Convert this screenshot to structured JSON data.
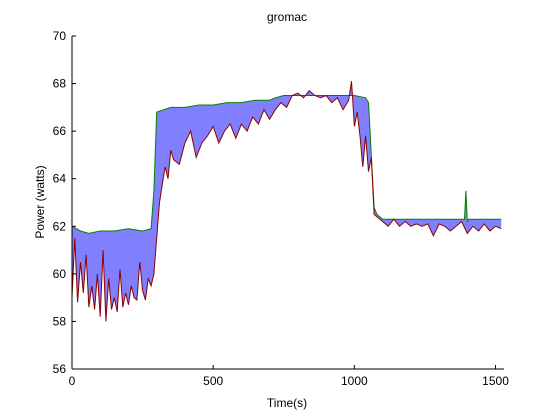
{
  "chart_data": {
    "type": "area",
    "title": "gromac",
    "xlabel": "Time(s)",
    "ylabel": "Power (watts)",
    "xlim": [
      0,
      1530
    ],
    "ylim": [
      56,
      70
    ],
    "xticks": [
      0,
      500,
      1000,
      1500
    ],
    "yticks": [
      56,
      58,
      60,
      62,
      64,
      66,
      68,
      70
    ],
    "grid": false,
    "legend": "none",
    "colors": {
      "fill": "#8080ff",
      "upper_line": "#008000",
      "lower_line": "#8b0000"
    },
    "series": [
      {
        "role": "upper",
        "x": [
          0,
          30,
          60,
          100,
          150,
          200,
          250,
          280,
          290,
          300,
          350,
          400,
          450,
          500,
          550,
          600,
          650,
          700,
          720,
          750,
          800,
          850,
          900,
          950,
          1000,
          1040,
          1050,
          1060,
          1070,
          1080,
          1100,
          1150,
          1200,
          1250,
          1300,
          1350,
          1390,
          1395,
          1400,
          1405,
          1420,
          1450,
          1480,
          1520
        ],
        "y": [
          62.0,
          61.8,
          61.7,
          61.8,
          61.8,
          61.9,
          61.8,
          61.9,
          63.5,
          66.8,
          67.0,
          67.0,
          67.1,
          67.1,
          67.2,
          67.2,
          67.3,
          67.3,
          67.4,
          67.5,
          67.5,
          67.5,
          67.5,
          67.5,
          67.5,
          67.4,
          67.2,
          65.0,
          62.8,
          62.5,
          62.3,
          62.3,
          62.3,
          62.3,
          62.3,
          62.3,
          62.3,
          63.5,
          62.2,
          62.3,
          62.3,
          62.3,
          62.3,
          62.3
        ]
      },
      {
        "role": "lower",
        "x": [
          0,
          10,
          20,
          30,
          40,
          50,
          60,
          70,
          80,
          90,
          100,
          110,
          120,
          130,
          140,
          150,
          160,
          170,
          180,
          190,
          200,
          210,
          220,
          230,
          240,
          250,
          260,
          270,
          280,
          290,
          300,
          310,
          320,
          330,
          340,
          350,
          360,
          380,
          400,
          420,
          440,
          460,
          480,
          500,
          520,
          540,
          560,
          580,
          600,
          620,
          640,
          660,
          680,
          700,
          720,
          740,
          760,
          780,
          800,
          820,
          840,
          860,
          880,
          900,
          920,
          940,
          960,
          980,
          990,
          1000,
          1010,
          1020,
          1030,
          1040,
          1050,
          1060,
          1070,
          1080,
          1100,
          1120,
          1140,
          1160,
          1180,
          1200,
          1220,
          1240,
          1260,
          1280,
          1300,
          1320,
          1340,
          1360,
          1380,
          1400,
          1420,
          1440,
          1460,
          1480,
          1500,
          1520
        ],
        "y": [
          59.0,
          61.5,
          58.8,
          60.5,
          59.2,
          60.8,
          58.6,
          59.5,
          58.5,
          60.0,
          58.2,
          61.0,
          58.0,
          59.8,
          58.5,
          59.0,
          58.4,
          60.2,
          58.6,
          59.2,
          58.7,
          59.5,
          59.0,
          58.9,
          60.5,
          59.3,
          58.9,
          59.8,
          59.5,
          60.0,
          61.5,
          63.0,
          63.8,
          64.5,
          64.0,
          65.2,
          64.8,
          64.6,
          65.5,
          66.0,
          64.9,
          65.5,
          65.8,
          66.2,
          65.5,
          66.0,
          66.3,
          65.7,
          66.3,
          66.0,
          66.6,
          66.3,
          66.9,
          66.5,
          66.9,
          67.2,
          67.0,
          67.5,
          67.6,
          67.4,
          67.7,
          67.5,
          67.4,
          67.5,
          67.2,
          67.4,
          66.9,
          67.3,
          68.1,
          66.2,
          66.8,
          65.8,
          64.5,
          65.8,
          64.3,
          64.9,
          62.5,
          62.4,
          62.2,
          62.0,
          62.3,
          62.0,
          62.2,
          62.0,
          62.1,
          62.0,
          62.1,
          61.6,
          62.1,
          62.0,
          61.8,
          62.0,
          62.2,
          61.7,
          62.0,
          61.8,
          62.1,
          61.8,
          62.0,
          61.9
        ]
      }
    ]
  }
}
